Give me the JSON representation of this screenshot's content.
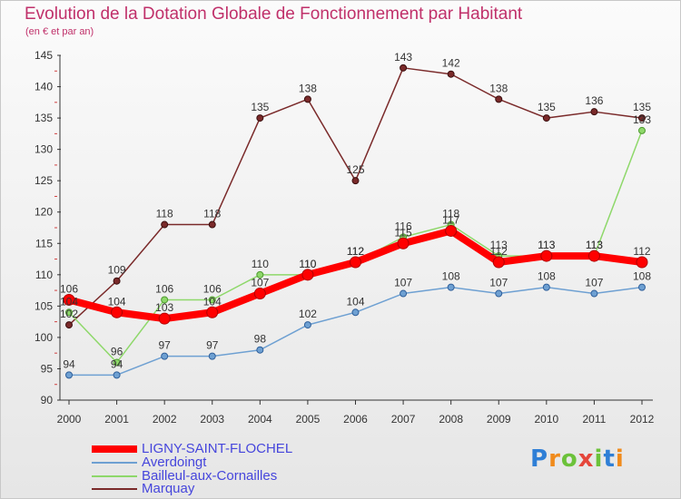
{
  "title": "Evolution de la Dotation Globale de Fonctionnement par Habitant",
  "subtitle": "(en € et par an)",
  "logo_text": "Proxiti",
  "chart_data": {
    "type": "line",
    "x": [
      2000,
      2001,
      2002,
      2003,
      2004,
      2005,
      2006,
      2007,
      2008,
      2009,
      2010,
      2011,
      2012
    ],
    "ylim": [
      90,
      145
    ],
    "yticks": [
      90,
      95,
      100,
      105,
      110,
      115,
      120,
      125,
      130,
      135,
      140,
      145
    ],
    "grid": false,
    "legend_position": "bottom-left",
    "series": [
      {
        "name": "LIGNY-SAINT-FLOCHEL",
        "color": "#ff0000",
        "values": [
          106,
          104,
          103,
          104,
          107,
          110,
          112,
          115,
          117,
          112,
          113,
          113,
          112
        ]
      },
      {
        "name": "Averdoingt",
        "color": "#6ea0d2",
        "values": [
          94,
          94,
          97,
          97,
          98,
          102,
          104,
          107,
          108,
          107,
          108,
          107,
          108
        ]
      },
      {
        "name": "Bailleul-aux-Cornailles",
        "color": "#8ed86a",
        "values": [
          104,
          96,
          106,
          106,
          110,
          110,
          112,
          116,
          118,
          113,
          113,
          113,
          133
        ]
      },
      {
        "name": "Marquay",
        "color": "#7a2a2a",
        "values": [
          102,
          109,
          118,
          118,
          135,
          138,
          125,
          143,
          142,
          138,
          135,
          136,
          135
        ]
      }
    ]
  }
}
